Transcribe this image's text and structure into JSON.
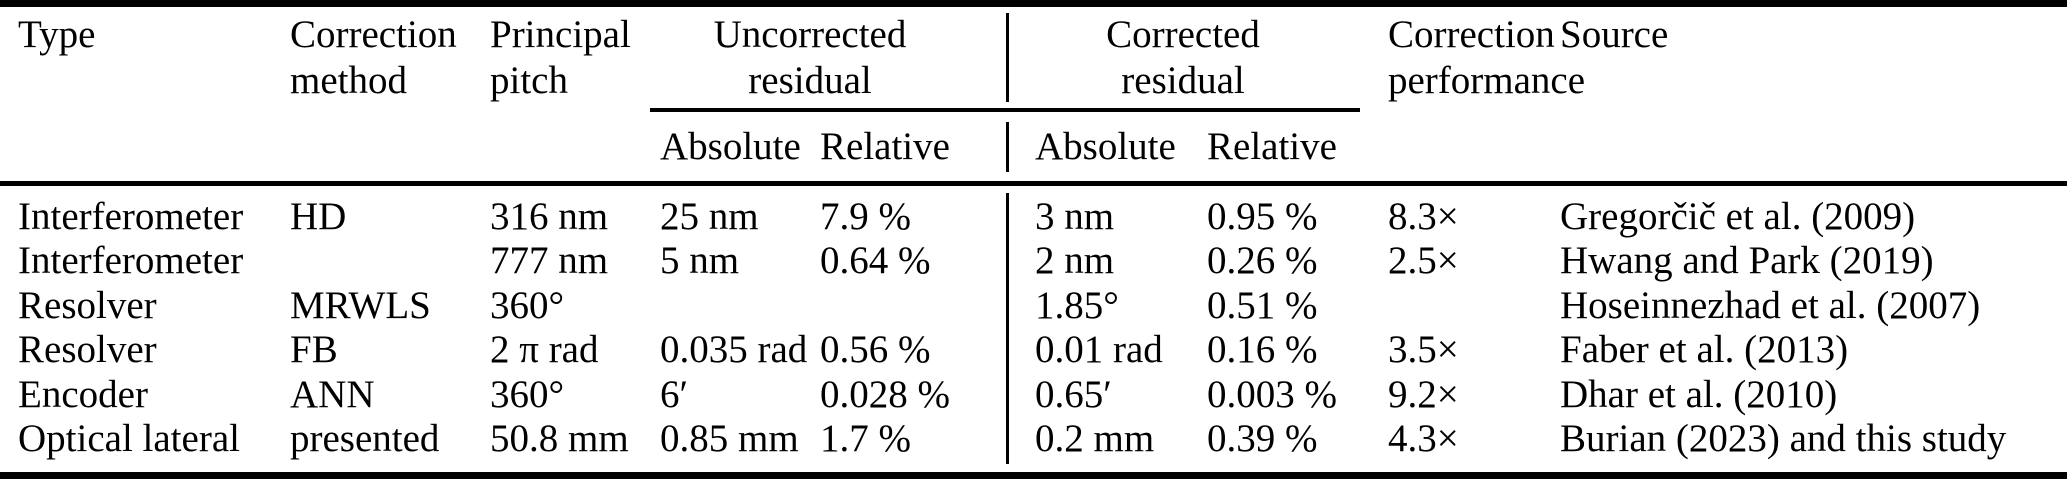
{
  "table": {
    "header": {
      "type": "Type",
      "method": "Correction method",
      "pitch": "Principal pitch",
      "uncorrected_group": "Uncorrected residual",
      "corrected_group": "Corrected residual",
      "performance": "Correction performance",
      "source": "Source",
      "sub": {
        "unc_abs": "Absolute",
        "unc_rel": "Relative",
        "cor_abs": "Absolute",
        "cor_rel": "Relative"
      }
    },
    "rows": [
      {
        "type": "Interferometer",
        "method": "HD",
        "pitch": "316 nm",
        "unc_abs": "25 nm",
        "unc_rel": "7.9 %",
        "cor_abs": "3 nm",
        "cor_rel": "0.95 %",
        "perf": "8.3×",
        "source": "Gregorčič et al. (2009)"
      },
      {
        "type": "Interferometer",
        "method": "",
        "pitch": "777 nm",
        "unc_abs": "5 nm",
        "unc_rel": "0.64 %",
        "cor_abs": "2 nm",
        "cor_rel": "0.26 %",
        "perf": "2.5×",
        "source": "Hwang and Park (2019)"
      },
      {
        "type": "Resolver",
        "method": "MRWLS",
        "pitch": "360°",
        "unc_abs": "",
        "unc_rel": "",
        "cor_abs": "1.85°",
        "cor_rel": "0.51 %",
        "perf": "",
        "source": "Hoseinnezhad et al. (2007)"
      },
      {
        "type": "Resolver",
        "method": "FB",
        "pitch": "2 π rad",
        "unc_abs": "0.035 rad",
        "unc_rel": "0.56 %",
        "cor_abs": "0.01 rad",
        "cor_rel": "0.16 %",
        "perf": "3.5×",
        "source": "Faber et al. (2013)"
      },
      {
        "type": "Encoder",
        "method": "ANN",
        "pitch": "360°",
        "unc_abs": "6′",
        "unc_rel": "0.028 %",
        "cor_abs": "0.65′",
        "cor_rel": "0.003 %",
        "perf": "9.2×",
        "source": "Dhar et al. (2010)"
      },
      {
        "type": "Optical lateral",
        "method": "presented",
        "pitch": "50.8 mm",
        "unc_abs": "0.85 mm",
        "unc_rel": "1.7 %",
        "cor_abs": "0.2 mm",
        "cor_rel": "0.39 %",
        "perf": "4.3×",
        "source": "Burian (2023) and this study"
      }
    ]
  }
}
